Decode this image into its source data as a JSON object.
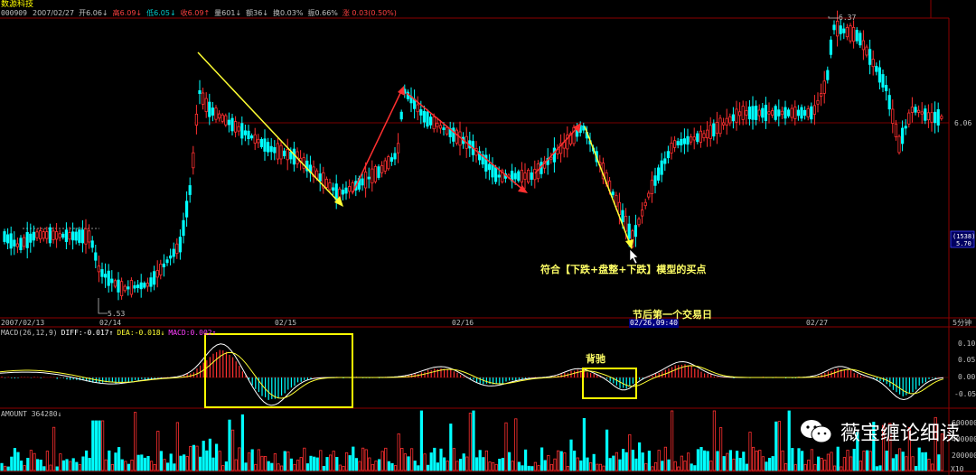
{
  "header": {
    "stock_name": "数源科技",
    "stock_code": "000909",
    "quote": [
      {
        "text": "2007/02/27",
        "color": "#c0c0c0"
      },
      {
        "text": "开6.06↓",
        "color": "#c0c0c0"
      },
      {
        "text": "高6.09↓",
        "color": "#ff4040"
      },
      {
        "text": "低6.05↓",
        "color": "#00cccc"
      },
      {
        "text": "收6.09↑",
        "color": "#ff4040"
      },
      {
        "text": "量601↓",
        "color": "#c0c0c0"
      },
      {
        "text": "额36↓",
        "color": "#c0c0c0"
      },
      {
        "text": "换0.03%",
        "color": "#c0c0c0"
      },
      {
        "text": "振0.66%",
        "color": "#c0c0c0"
      },
      {
        "text": "涨 0.03(0.50%)",
        "color": "#ff4040"
      }
    ]
  },
  "main_panel": {
    "price_high_label": "6.37",
    "price_low_label": "5.53",
    "price_ref_label": "6.06",
    "cursor_box_top": "(1538)",
    "cursor_box_bottom": "5.70"
  },
  "time_axis": {
    "labels": [
      "2007/02/13",
      "02/14",
      "02/15",
      "02/16",
      "02/26,09:40",
      "02/27"
    ],
    "period": "5分钟"
  },
  "annotations": {
    "buy_point": "符合【下跌+盘整+下跌】模型的买点",
    "first_day": "节后第一个交易日",
    "divergence": "背驰"
  },
  "macd_panel": {
    "title": "MACD(26,12,9)",
    "diff_label": "DIFF:-0.017↑",
    "dea_label": "DEA:-0.018↓",
    "macd_label": "MACD:0.002↑",
    "y_ticks": [
      "0.10",
      "0.05",
      "0.00",
      "-0.05"
    ]
  },
  "amount_panel": {
    "title": "AMOUNT 364280↓",
    "y_ticks": [
      "600000",
      "400000",
      "200000"
    ],
    "unit": "X10"
  },
  "watermark": {
    "text": "薇宝缠论细读"
  },
  "colors": {
    "up": "#ff3030",
    "down": "#00ffff",
    "grid": "#8b0000",
    "annotation": "#ffff66",
    "box": "#ffff00"
  }
}
